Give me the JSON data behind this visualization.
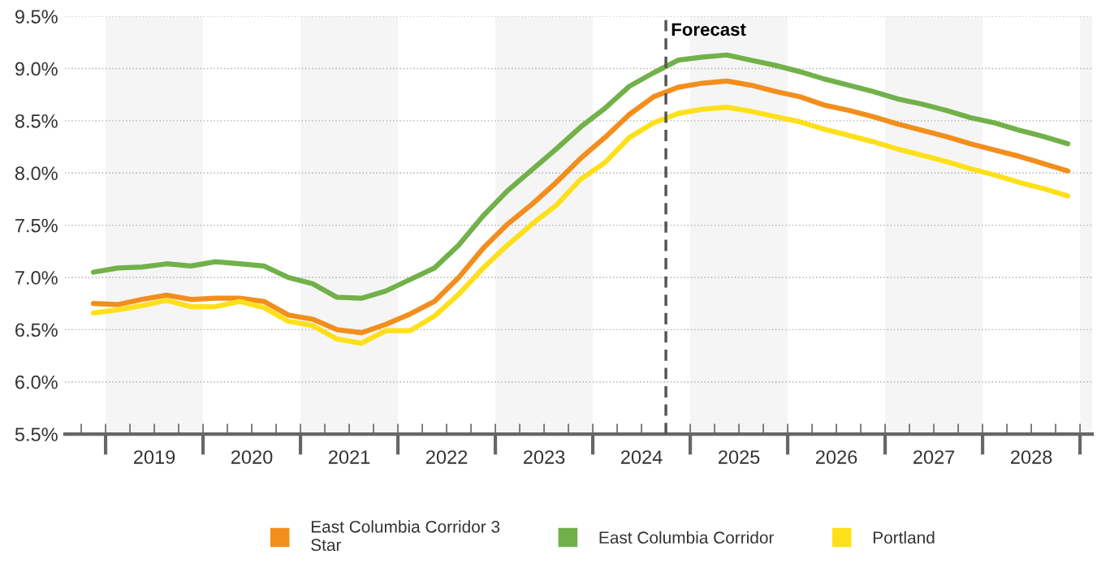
{
  "chart_data": {
    "type": "line",
    "x": [
      2018.875,
      2019.125,
      2019.375,
      2019.625,
      2019.875,
      2020.125,
      2020.375,
      2020.625,
      2020.875,
      2021.125,
      2021.375,
      2021.625,
      2021.875,
      2022.125,
      2022.375,
      2022.625,
      2022.875,
      2023.125,
      2023.375,
      2023.625,
      2023.875,
      2024.125,
      2024.375,
      2024.625,
      2024.875,
      2025.125,
      2025.375,
      2025.625,
      2025.875,
      2026.125,
      2026.375,
      2026.625,
      2026.875,
      2027.125,
      2027.375,
      2027.625,
      2027.875,
      2028.125,
      2028.375,
      2028.625,
      2028.875
    ],
    "series": [
      {
        "name": "East Columbia Corridor 3\nStar",
        "color": "#f28e1c",
        "values": [
          6.75,
          6.74,
          6.79,
          6.83,
          6.79,
          6.8,
          6.8,
          6.77,
          6.64,
          6.6,
          6.5,
          6.47,
          6.55,
          6.65,
          6.77,
          7.0,
          7.28,
          7.51,
          7.7,
          7.91,
          8.14,
          8.34,
          8.56,
          8.73,
          8.82,
          8.86,
          8.88,
          8.84,
          8.78,
          8.73,
          8.65,
          8.6,
          8.54,
          8.47,
          8.41,
          8.35,
          8.28,
          8.22,
          8.16,
          8.09,
          8.02
        ]
      },
      {
        "name": "East Columbia Corridor",
        "color": "#72b14a",
        "values": [
          7.05,
          7.09,
          7.1,
          7.13,
          7.11,
          7.15,
          7.13,
          7.11,
          7.0,
          6.94,
          6.81,
          6.8,
          6.87,
          6.98,
          7.09,
          7.31,
          7.59,
          7.83,
          8.03,
          8.23,
          8.44,
          8.62,
          8.83,
          8.96,
          9.08,
          9.11,
          9.13,
          9.08,
          9.03,
          8.97,
          8.9,
          8.84,
          8.78,
          8.71,
          8.66,
          8.6,
          8.53,
          8.48,
          8.41,
          8.35,
          8.28
        ]
      },
      {
        "name": "Portland",
        "color": "#fde01a",
        "values": [
          6.66,
          6.69,
          6.73,
          6.78,
          6.72,
          6.72,
          6.77,
          6.71,
          6.58,
          6.54,
          6.41,
          6.37,
          6.49,
          6.49,
          6.63,
          6.84,
          7.09,
          7.31,
          7.51,
          7.69,
          7.94,
          8.1,
          8.34,
          8.48,
          8.57,
          8.61,
          8.63,
          8.59,
          8.54,
          8.49,
          8.42,
          8.36,
          8.3,
          8.23,
          8.17,
          8.11,
          8.04,
          7.98,
          7.91,
          7.85,
          7.78
        ]
      }
    ],
    "xlim": [
      2018.583,
      2029.125
    ],
    "xticks": [
      {
        "value": 2018.75,
        "label": null
      },
      {
        "value": 2019,
        "label": null
      },
      {
        "value": 2019.25,
        "label": null
      },
      {
        "value": 2019.5,
        "label": null
      },
      {
        "value": 2019.75,
        "label": null
      },
      {
        "value": 2020,
        "label": null
      },
      {
        "value": 2020.25,
        "label": null
      },
      {
        "value": 2020.5,
        "label": null
      },
      {
        "value": 2020.75,
        "label": null
      },
      {
        "value": 2021,
        "label": null
      },
      {
        "value": 2021.25,
        "label": null
      },
      {
        "value": 2021.5,
        "label": null
      },
      {
        "value": 2021.75,
        "label": null
      },
      {
        "value": 2022,
        "label": null
      },
      {
        "value": 2022.25,
        "label": null
      },
      {
        "value": 2022.5,
        "label": null
      },
      {
        "value": 2022.75,
        "label": null
      },
      {
        "value": 2023,
        "label": null
      },
      {
        "value": 2023.25,
        "label": null
      },
      {
        "value": 2023.5,
        "label": null
      },
      {
        "value": 2023.75,
        "label": null
      },
      {
        "value": 2024,
        "label": null
      },
      {
        "value": 2024.25,
        "label": null
      },
      {
        "value": 2024.5,
        "label": null
      },
      {
        "value": 2024.75,
        "label": null
      },
      {
        "value": 2025,
        "label": null
      },
      {
        "value": 2025.25,
        "label": null
      },
      {
        "value": 2025.5,
        "label": null
      },
      {
        "value": 2025.75,
        "label": null
      },
      {
        "value": 2026,
        "label": null
      },
      {
        "value": 2026.25,
        "label": null
      },
      {
        "value": 2026.5,
        "label": null
      },
      {
        "value": 2026.75,
        "label": null
      },
      {
        "value": 2027,
        "label": null
      },
      {
        "value": 2027.25,
        "label": null
      },
      {
        "value": 2027.5,
        "label": null
      },
      {
        "value": 2027.75,
        "label": null
      },
      {
        "value": 2028,
        "label": null
      },
      {
        "value": 2028.25,
        "label": null
      },
      {
        "value": 2028.5,
        "label": null
      },
      {
        "value": 2028.75,
        "label": null
      },
      {
        "value": 2029,
        "label": null
      },
      {
        "value": 2019.5,
        "label": "2019"
      },
      {
        "value": 2020.5,
        "label": "2020"
      },
      {
        "value": 2021.5,
        "label": "2021"
      },
      {
        "value": 2022.5,
        "label": "2022"
      },
      {
        "value": 2023.5,
        "label": "2023"
      },
      {
        "value": 2024.5,
        "label": "2024"
      },
      {
        "value": 2025.5,
        "label": "2025"
      },
      {
        "value": 2026.5,
        "label": "2026"
      },
      {
        "value": 2027.5,
        "label": "2027"
      },
      {
        "value": 2028.5,
        "label": "2028"
      }
    ],
    "ylim": [
      5.5,
      9.5
    ],
    "yticks": [
      {
        "value": 5.5,
        "label": "5.5%"
      },
      {
        "value": 6.0,
        "label": "6.0%"
      },
      {
        "value": 6.5,
        "label": "6.5%"
      },
      {
        "value": 7.0,
        "label": "7.0%"
      },
      {
        "value": 7.5,
        "label": "7.5%"
      },
      {
        "value": 8.0,
        "label": "8.0%"
      },
      {
        "value": 8.5,
        "label": "8.5%"
      },
      {
        "value": 9.0,
        "label": "9.0%"
      },
      {
        "value": 9.5,
        "label": "9.5%"
      }
    ],
    "ref_lines": [
      {
        "axis": "x",
        "value": 2024.75,
        "label": "Forecast",
        "color": "#555555",
        "line_style": "dashed"
      }
    ],
    "bands": [
      {
        "axis": "x",
        "from": 2019,
        "to": 2020,
        "color": "#f5f5f5"
      },
      {
        "axis": "x",
        "from": 2021,
        "to": 2022,
        "color": "#f5f5f5"
      },
      {
        "axis": "x",
        "from": 2023,
        "to": 2024,
        "color": "#f5f5f5"
      },
      {
        "axis": "x",
        "from": 2025,
        "to": 2026,
        "color": "#f5f5f5"
      },
      {
        "axis": "x",
        "from": 2027,
        "to": 2028,
        "color": "#f5f5f5"
      },
      {
        "axis": "x",
        "from": 2029,
        "to": 2029.125,
        "color": "#f5f5f5"
      }
    ],
    "grid": "y",
    "legend": "bottom",
    "marker": "none",
    "line_style": "solid"
  }
}
